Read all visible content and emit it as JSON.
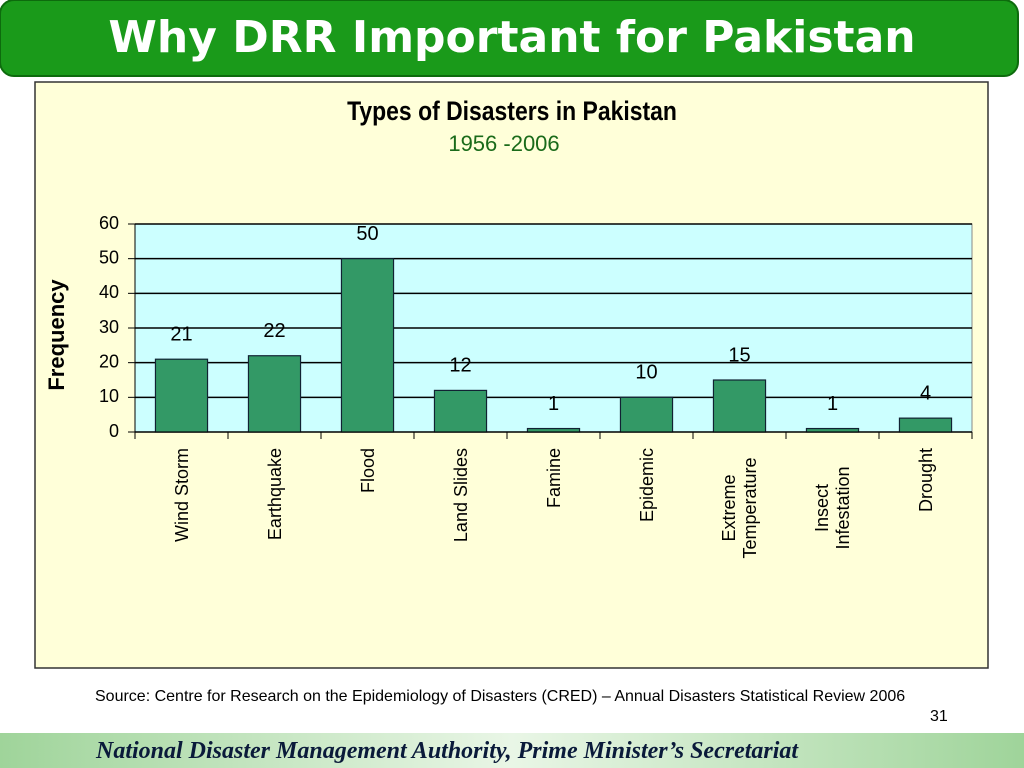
{
  "header": {
    "title": "Why DRR Important for Pakistan"
  },
  "chart_data": {
    "type": "bar",
    "title": "Types of Disasters in Pakistan",
    "subtitle": "1956 -2006",
    "ylabel": "Frequency",
    "categories": [
      "Wind Storm",
      "Earthquake",
      "Flood",
      "Land Slides",
      "Famine",
      "Epidemic",
      "Extreme Temperature",
      "Insect Infestation",
      "Drought"
    ],
    "values": [
      21,
      22,
      50,
      12,
      1,
      10,
      15,
      1,
      4
    ],
    "color": "#339966",
    "ylim": [
      0,
      60
    ],
    "yticks": [
      0,
      10,
      20,
      30,
      40,
      50,
      60
    ],
    "grid": true
  },
  "source": "Source: Centre for Research on the Epidemiology of Disasters (CRED) – Annual Disasters Statistical Review 2006",
  "page_number": "31",
  "footer": "National Disaster Management Authority, Prime Minister’s Secretariat"
}
